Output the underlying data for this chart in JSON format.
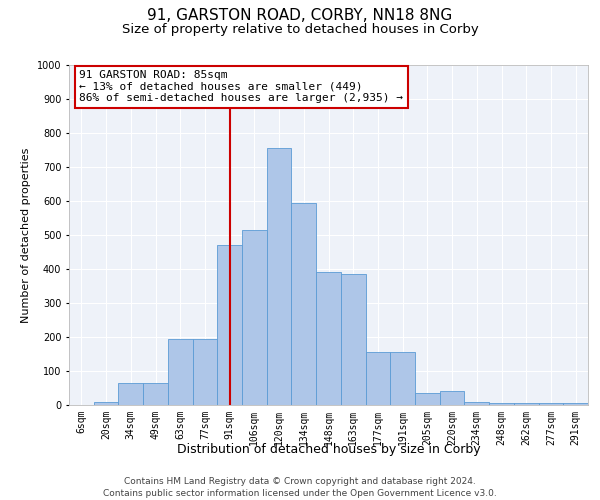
{
  "title1": "91, GARSTON ROAD, CORBY, NN18 8NG",
  "title2": "Size of property relative to detached houses in Corby",
  "xlabel": "Distribution of detached houses by size in Corby",
  "ylabel": "Number of detached properties",
  "categories": [
    "6sqm",
    "20sqm",
    "34sqm",
    "49sqm",
    "63sqm",
    "77sqm",
    "91sqm",
    "106sqm",
    "120sqm",
    "134sqm",
    "148sqm",
    "163sqm",
    "177sqm",
    "191sqm",
    "205sqm",
    "220sqm",
    "234sqm",
    "248sqm",
    "262sqm",
    "277sqm",
    "291sqm"
  ],
  "values": [
    0,
    10,
    65,
    65,
    195,
    195,
    470,
    515,
    755,
    595,
    390,
    385,
    155,
    155,
    35,
    40,
    10,
    5,
    5,
    5,
    5
  ],
  "bar_color": "#aec6e8",
  "bar_edge_color": "#5b9bd5",
  "vline_x_index": 6,
  "vline_color": "#cc0000",
  "annotation_text": "91 GARSTON ROAD: 85sqm\n← 13% of detached houses are smaller (449)\n86% of semi-detached houses are larger (2,935) →",
  "annotation_box_color": "#ffffff",
  "annotation_box_edge": "#cc0000",
  "ylim": [
    0,
    1000
  ],
  "yticks": [
    0,
    100,
    200,
    300,
    400,
    500,
    600,
    700,
    800,
    900,
    1000
  ],
  "background_color": "#eef2f9",
  "grid_color": "#ffffff",
  "footer_text": "Contains HM Land Registry data © Crown copyright and database right 2024.\nContains public sector information licensed under the Open Government Licence v3.0.",
  "title1_fontsize": 11,
  "title2_fontsize": 9.5,
  "xlabel_fontsize": 9,
  "ylabel_fontsize": 8,
  "tick_fontsize": 7,
  "annotation_fontsize": 8,
  "footer_fontsize": 6.5
}
